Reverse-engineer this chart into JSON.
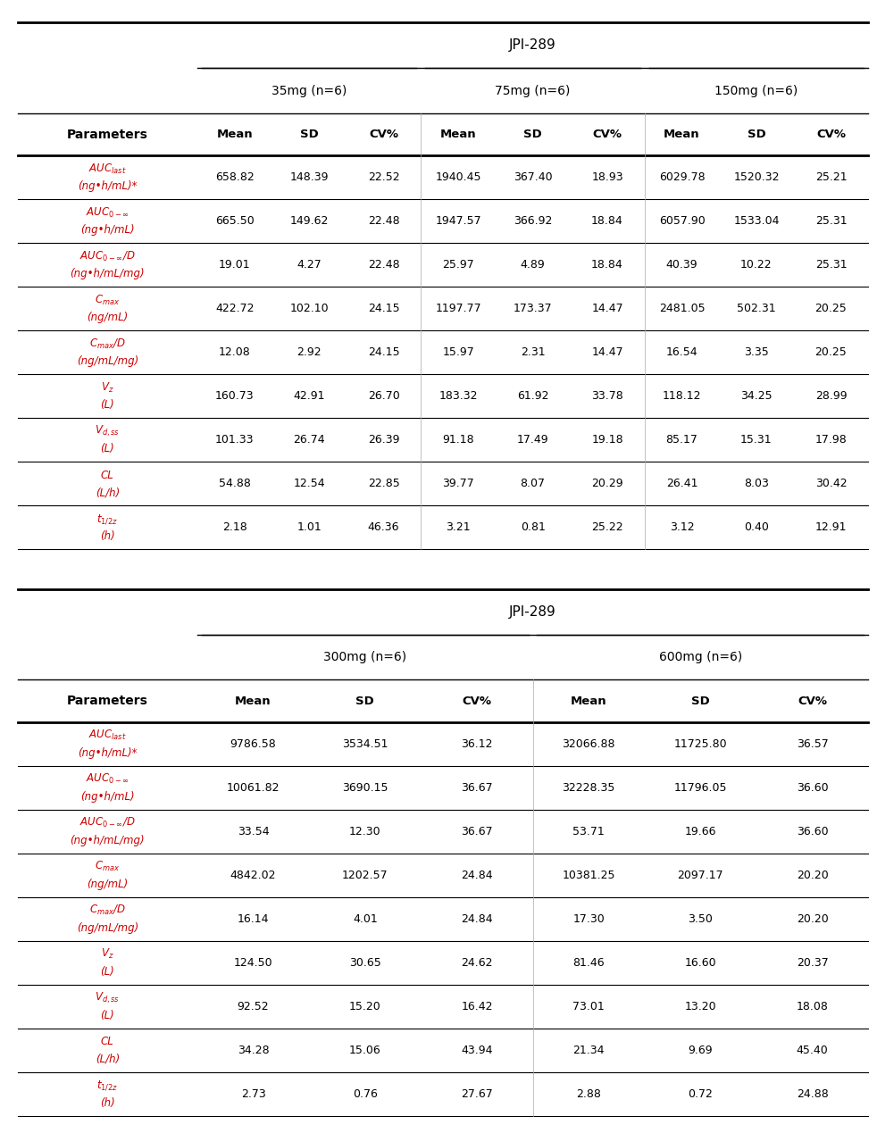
{
  "table1": {
    "title": "JPI-289",
    "col_groups": [
      "35mg (n=6)",
      "75mg (n=6)",
      "150mg (n=6)"
    ],
    "sub_cols": [
      "Mean",
      "SD",
      "CV%"
    ],
    "param_line1": [
      "AUC$_{last}$",
      "AUC$_{0-∞}$",
      "AUC$_{0-∞}$/D",
      "C$_{max}$",
      "C$_{max}$/D",
      "V$_{z}$",
      "V$_{d,ss}$",
      "CL",
      "t$_{1/2z}$"
    ],
    "param_line2": [
      "(ng•h/mL)*",
      "(ng•h/mL)",
      "(ng•h/mL/mg)",
      "(ng/mL)",
      "(ng/mL/mg)",
      "(L)",
      "(L)",
      "(L/h)",
      "(h)"
    ],
    "data": [
      [
        658.82,
        148.39,
        22.52,
        1940.45,
        367.4,
        18.93,
        6029.78,
        1520.32,
        25.21
      ],
      [
        665.5,
        149.62,
        22.48,
        1947.57,
        366.92,
        18.84,
        6057.9,
        1533.04,
        25.31
      ],
      [
        19.01,
        4.27,
        22.48,
        25.97,
        4.89,
        18.84,
        40.39,
        10.22,
        25.31
      ],
      [
        422.72,
        102.1,
        24.15,
        1197.77,
        173.37,
        14.47,
        2481.05,
        502.31,
        20.25
      ],
      [
        12.08,
        2.92,
        24.15,
        15.97,
        2.31,
        14.47,
        16.54,
        3.35,
        20.25
      ],
      [
        160.73,
        42.91,
        26.7,
        183.32,
        61.92,
        33.78,
        118.12,
        34.25,
        28.99
      ],
      [
        101.33,
        26.74,
        26.39,
        91.18,
        17.49,
        19.18,
        85.17,
        15.31,
        17.98
      ],
      [
        54.88,
        12.54,
        22.85,
        39.77,
        8.07,
        20.29,
        26.41,
        8.03,
        30.42
      ],
      [
        2.18,
        1.01,
        46.36,
        3.21,
        0.81,
        25.22,
        3.12,
        0.4,
        12.91
      ]
    ]
  },
  "table2": {
    "title": "JPI-289",
    "col_groups": [
      "300mg (n=6)",
      "600mg (n=6)"
    ],
    "sub_cols": [
      "Mean",
      "SD",
      "CV%"
    ],
    "param_line1": [
      "AUC$_{last}$",
      "AUC$_{0-∞}$",
      "AUC$_{0-∞}$/D",
      "C$_{max}$",
      "C$_{max}$/D",
      "V$_{z}$",
      "V$_{d,ss}$",
      "CL",
      "t$_{1/2z}$"
    ],
    "param_line2": [
      "(ng•h/mL)*",
      "(ng•h/mL)",
      "(ng•h/mL/mg)",
      "(ng/mL)",
      "(ng/mL/mg)",
      "(L)",
      "(L)",
      "(L/h)",
      "(h)"
    ],
    "data": [
      [
        9786.58,
        3534.51,
        36.12,
        32066.88,
        11725.8,
        36.57
      ],
      [
        10061.82,
        3690.15,
        36.67,
        32228.35,
        11796.05,
        36.6
      ],
      [
        33.54,
        12.3,
        36.67,
        53.71,
        19.66,
        36.6
      ],
      [
        4842.02,
        1202.57,
        24.84,
        10381.25,
        2097.17,
        20.2
      ],
      [
        16.14,
        4.01,
        24.84,
        17.3,
        3.5,
        20.2
      ],
      [
        124.5,
        30.65,
        24.62,
        81.46,
        16.6,
        20.37
      ],
      [
        92.52,
        15.2,
        16.42,
        73.01,
        13.2,
        18.08
      ],
      [
        34.28,
        15.06,
        43.94,
        21.34,
        9.69,
        45.4
      ],
      [
        2.73,
        0.76,
        27.67,
        2.88,
        0.72,
        24.88
      ]
    ]
  },
  "param_color": "#cc0000",
  "header_color": "#000000",
  "data_color": "#000000",
  "bg_color": "#ffffff"
}
